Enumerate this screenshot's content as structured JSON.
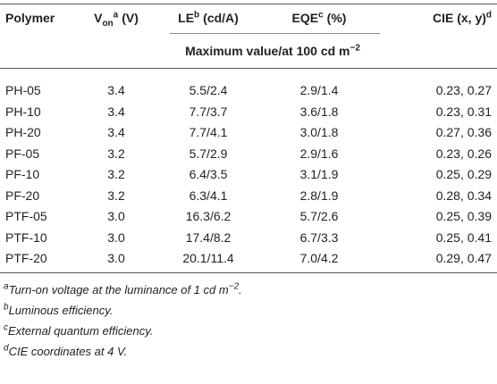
{
  "table": {
    "header": [
      {
        "text": "Polymer"
      },
      {
        "text": "V",
        "sub": "on",
        "sup": "a",
        "unit": "(V)"
      },
      {
        "text": "LE",
        "sup": "b",
        "unit": "(cd/A)"
      },
      {
        "text": "EQE",
        "sup": "c",
        "unit": "(%)"
      },
      {
        "text": "CIE (x, y)",
        "sup": "d"
      }
    ],
    "subheader": {
      "text": "Maximum value/at 100 cd m",
      "sup": "−2"
    },
    "rows": [
      [
        "PH-05",
        "3.4",
        "5.5/2.4",
        "2.9/1.4",
        "0.23, 0.27"
      ],
      [
        "PH-10",
        "3.4",
        "7.7/3.7",
        "3.6/1.8",
        "0.23, 0.31"
      ],
      [
        "PH-20",
        "3.4",
        "7.7/4.1",
        "3.0/1.8",
        "0.27, 0.36"
      ],
      [
        "PF-05",
        "3.2",
        "5.7/2.9",
        "2.9/1.6",
        "0.23, 0.26"
      ],
      [
        "PF-10",
        "3.2",
        "6.4/3.5",
        "3.1/1.9",
        "0.25, 0.29"
      ],
      [
        "PF-20",
        "3.2",
        "6.3/4.1",
        "2.8/1.9",
        "0.28, 0.34"
      ],
      [
        "PTF-05",
        "3.0",
        "16.3/6.2",
        "5.7/2.6",
        "0.25, 0.39"
      ],
      [
        "PTF-10",
        "3.0",
        "17.4/8.2",
        "6.7/3.3",
        "0.25, 0.41"
      ],
      [
        "PTF-20",
        "3.0",
        "20.1/11.4",
        "7.0/4.2",
        "0.29, 0.47"
      ]
    ]
  },
  "footnotes": [
    {
      "mark": "a",
      "text": "Turn-on voltage at the luminance of 1 cd m",
      "sup": "−2",
      "end": "."
    },
    {
      "mark": "b",
      "text": "Luminous efficiency."
    },
    {
      "mark": "c",
      "text": "External quantum efficiency."
    },
    {
      "mark": "d",
      "text": "CIE coordinates at 4 V."
    }
  ]
}
